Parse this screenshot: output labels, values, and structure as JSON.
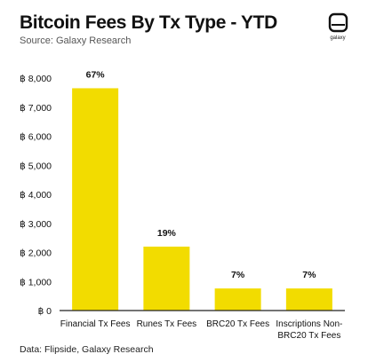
{
  "header": {
    "title": "Bitcoin Fees By Tx Type - YTD",
    "subtitle": "Source: Galaxy Research"
  },
  "logo": {
    "icon": "galaxy-logo-icon",
    "text": "galaxy"
  },
  "footer": {
    "source": "Data: Flipside, Galaxy Research"
  },
  "colors": {
    "bar": "#f2dc00",
    "axis": "#222222",
    "text": "#111111"
  },
  "chart_data": {
    "type": "bar",
    "title": "Bitcoin Fees By Tx Type - YTD",
    "subtitle": "Source: Galaxy Research",
    "xlabel": "",
    "ylabel": "",
    "categories": [
      "Financial Tx Fees",
      "Runes Tx Fees",
      "BRC20 Tx Fees",
      "Inscriptions Non-BRC20 Tx Fees"
    ],
    "category_lines": [
      [
        "Financial Tx Fees"
      ],
      [
        "Runes Tx Fees"
      ],
      [
        "BRC20 Tx Fees"
      ],
      [
        "Inscriptions Non-",
        "BRC20 Tx Fees"
      ]
    ],
    "values": [
      7650,
      2200,
      760,
      760
    ],
    "data_labels": [
      "67%",
      "19%",
      "7%",
      "7%"
    ],
    "yticks": [
      0,
      1000,
      2000,
      3000,
      4000,
      5000,
      6000,
      7000,
      8000
    ],
    "ytick_labels": [
      "฿ 0",
      "฿ 1,000",
      "฿ 2,000",
      "฿ 3,000",
      "฿ 4,000",
      "฿ 5,000",
      "฿ 6,000",
      "฿ 7,000",
      "฿ 8,000"
    ],
    "ylim": [
      0,
      8000
    ],
    "grid": false,
    "legend": "none"
  }
}
